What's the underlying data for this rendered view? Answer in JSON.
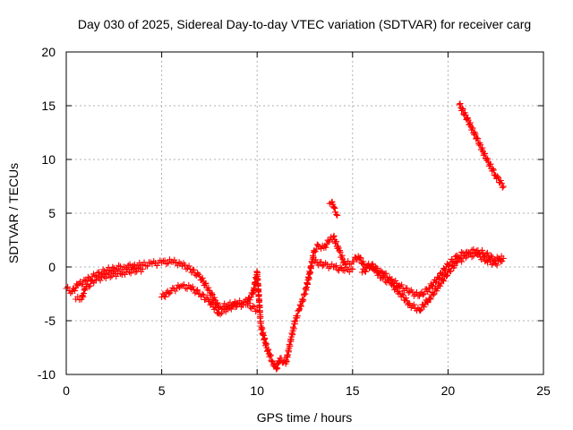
{
  "chart_data": {
    "type": "scatter",
    "title": "Day 030 of 2025, Sidereal Day-to-day VTEC variation (SDTVAR) for receiver carg",
    "xlabel": "GPS time / hours",
    "ylabel": "SDTVAR / TECUs",
    "xlim": [
      0,
      25
    ],
    "ylim": [
      -10,
      20
    ],
    "xticks": [
      0,
      5,
      10,
      15,
      20,
      25
    ],
    "yticks": [
      -10,
      -5,
      0,
      5,
      10,
      15,
      20
    ],
    "grid": true,
    "legend": "none",
    "marker": "+",
    "color": "#ff0000",
    "series": [
      {
        "name": "main-trace",
        "points": [
          [
            0.0,
            -2.0
          ],
          [
            0.3,
            -2.3
          ],
          [
            0.6,
            -1.7
          ],
          [
            1.0,
            -1.3
          ],
          [
            1.5,
            -0.8
          ],
          [
            2.0,
            -0.4
          ],
          [
            2.5,
            -0.1
          ],
          [
            3.0,
            0.0
          ],
          [
            3.5,
            0.1
          ],
          [
            4.0,
            0.2
          ],
          [
            4.5,
            0.3
          ],
          [
            5.0,
            0.4
          ],
          [
            5.5,
            0.5
          ],
          [
            6.0,
            0.3
          ],
          [
            6.5,
            -0.2
          ],
          [
            7.0,
            -0.9
          ],
          [
            7.5,
            -2.2
          ],
          [
            8.0,
            -3.8
          ],
          [
            8.5,
            -3.5
          ],
          [
            9.0,
            -3.4
          ],
          [
            9.5,
            -3.2
          ],
          [
            9.8,
            -2.4
          ],
          [
            10.0,
            -0.5
          ],
          [
            10.2,
            -5.5
          ],
          [
            10.5,
            -7.5
          ],
          [
            10.8,
            -8.8
          ],
          [
            11.0,
            -9.5
          ],
          [
            11.2,
            -8.5
          ],
          [
            11.5,
            -9.0
          ],
          [
            11.8,
            -6.5
          ],
          [
            12.0,
            -5.0
          ],
          [
            12.2,
            -4.0
          ],
          [
            12.5,
            -2.5
          ],
          [
            12.7,
            -1.0
          ],
          [
            13.0,
            1.5
          ],
          [
            13.2,
            2.0
          ],
          [
            13.5,
            1.8
          ],
          [
            13.8,
            2.5
          ],
          [
            14.0,
            2.8
          ],
          [
            14.3,
            1.5
          ],
          [
            14.6,
            0.2
          ],
          [
            15.0,
            0.5
          ],
          [
            15.3,
            1.0
          ],
          [
            15.6,
            0.2
          ],
          [
            16.0,
            0.0
          ],
          [
            16.5,
            -0.4
          ],
          [
            17.0,
            -1.2
          ],
          [
            17.5,
            -1.8
          ],
          [
            18.0,
            -2.3
          ],
          [
            18.5,
            -2.7
          ],
          [
            19.0,
            -2.0
          ],
          [
            19.5,
            -1.0
          ],
          [
            20.0,
            0.2
          ],
          [
            20.5,
            1.0
          ],
          [
            21.0,
            1.4
          ],
          [
            21.5,
            1.5
          ],
          [
            22.0,
            1.2
          ],
          [
            22.5,
            0.6
          ],
          [
            22.8,
            1.0
          ]
        ]
      },
      {
        "name": "lower-branch-a",
        "points": [
          [
            0.5,
            -3.0
          ],
          [
            0.8,
            -3.0
          ],
          [
            1.0,
            -2.0
          ],
          [
            1.5,
            -1.2
          ],
          [
            2.0,
            -0.9
          ],
          [
            3.0,
            -0.5
          ],
          [
            4.0,
            -0.2
          ]
        ]
      },
      {
        "name": "lower-branch-b",
        "points": [
          [
            5.0,
            -2.8
          ],
          [
            5.5,
            -2.2
          ],
          [
            6.0,
            -1.8
          ],
          [
            6.5,
            -1.9
          ],
          [
            7.0,
            -2.5
          ],
          [
            7.5,
            -3.2
          ],
          [
            8.0,
            -4.3
          ],
          [
            8.5,
            -3.8
          ],
          [
            9.0,
            -3.5
          ],
          [
            9.5,
            -3.5
          ],
          [
            10.0,
            -4.0
          ]
        ]
      },
      {
        "name": "branch-c",
        "points": [
          [
            15.5,
            -0.5
          ],
          [
            16.0,
            0.2
          ],
          [
            16.5,
            -1.0
          ],
          [
            17.0,
            -1.5
          ],
          [
            17.5,
            -2.5
          ],
          [
            18.0,
            -3.5
          ],
          [
            18.5,
            -4.0
          ],
          [
            19.0,
            -3.0
          ],
          [
            19.5,
            -1.8
          ],
          [
            20.0,
            -0.5
          ],
          [
            20.5,
            0.5
          ],
          [
            21.0,
            1.0
          ],
          [
            21.5,
            1.2
          ],
          [
            22.0,
            0.6
          ],
          [
            22.5,
            0.3
          ],
          [
            22.9,
            0.8
          ]
        ]
      },
      {
        "name": "branch-d",
        "points": [
          [
            13.0,
            0.5
          ],
          [
            13.5,
            0.2
          ],
          [
            14.0,
            0.0
          ],
          [
            14.5,
            -0.3
          ],
          [
            15.0,
            -0.2
          ]
        ]
      },
      {
        "name": "spike-cluster",
        "points": [
          [
            13.8,
            5.9
          ],
          [
            13.9,
            6.0
          ],
          [
            14.0,
            5.6
          ],
          [
            14.1,
            5.1
          ],
          [
            14.2,
            4.8
          ]
        ]
      },
      {
        "name": "upper-arc",
        "points": [
          [
            20.6,
            15.1
          ],
          [
            21.0,
            13.8
          ],
          [
            21.5,
            12.0
          ],
          [
            22.0,
            10.1
          ],
          [
            22.5,
            8.5
          ],
          [
            22.9,
            7.5
          ]
        ]
      }
    ]
  }
}
